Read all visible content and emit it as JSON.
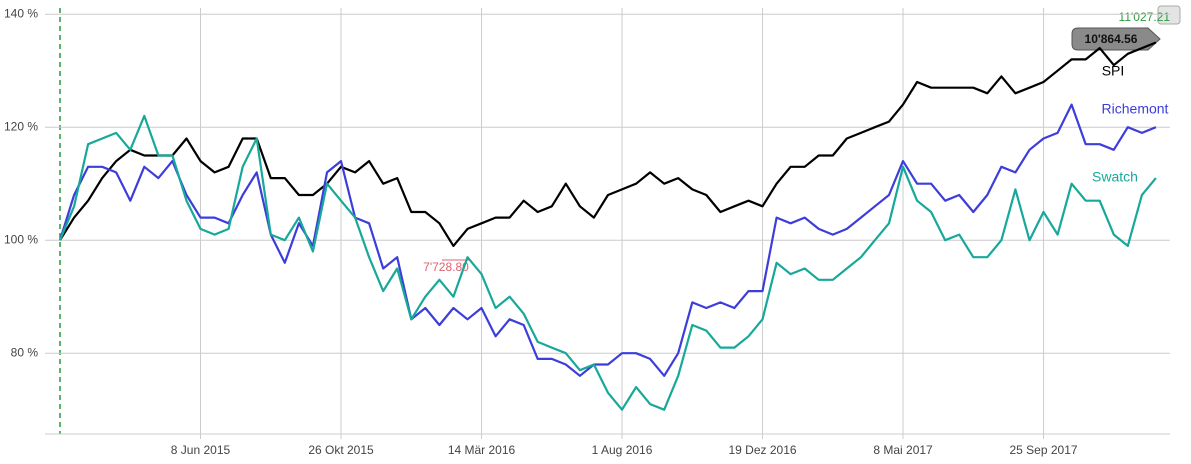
{
  "chart_data": {
    "type": "line",
    "xlim": [
      0,
      79
    ],
    "ylim": [
      65.7,
      141.1
    ],
    "yticks": [
      {
        "value": 80,
        "label": "80 %"
      },
      {
        "value": 100,
        "label": "100 %"
      },
      {
        "value": 120,
        "label": "120 %"
      },
      {
        "value": 140,
        "label": "140 %"
      }
    ],
    "xticks": [
      {
        "value": 10,
        "label": "8 Jun 2015"
      },
      {
        "value": 20,
        "label": "26 Okt 2015"
      },
      {
        "value": 30,
        "label": "14 Mär 2016"
      },
      {
        "value": 40,
        "label": "1 Aug 2016"
      },
      {
        "value": 50,
        "label": "19 Dez 2016"
      },
      {
        "value": 60,
        "label": "8 Mai 2017"
      },
      {
        "value": 70,
        "label": "25 Sep 2017"
      }
    ],
    "grid": true,
    "series": [
      {
        "name": "SPI",
        "color": "#000000",
        "values": [
          100,
          104,
          107,
          111,
          114,
          116,
          115,
          115,
          115,
          118,
          114,
          112,
          113,
          118,
          118,
          111,
          111,
          108,
          108,
          110,
          113,
          112,
          114,
          110,
          111,
          105,
          105,
          103,
          99,
          102,
          103,
          104,
          104,
          107,
          105,
          106,
          110,
          106,
          104,
          108,
          109,
          110,
          112,
          110,
          111,
          109,
          108,
          105,
          106,
          107,
          106,
          110,
          113,
          113,
          115,
          115,
          118,
          119,
          120,
          121,
          124,
          128,
          127,
          127,
          127,
          127,
          126,
          129,
          126,
          127,
          128,
          130,
          132,
          132,
          134,
          131,
          133,
          134,
          135
        ]
      },
      {
        "name": "Richemont",
        "color": "#3d3ddb",
        "values": [
          100,
          108,
          113,
          113,
          112,
          107,
          113,
          111,
          114,
          108,
          104,
          104,
          103,
          108,
          112,
          101,
          96,
          103,
          99,
          112,
          114,
          104,
          103,
          95,
          97,
          86,
          88,
          85,
          88,
          86,
          88,
          83,
          86,
          85,
          79,
          79,
          78,
          76,
          78,
          78,
          80,
          80,
          79,
          76,
          80,
          89,
          88,
          89,
          88,
          91,
          91,
          104,
          103,
          104,
          102,
          101,
          102,
          104,
          106,
          108,
          114,
          110,
          110,
          107,
          108,
          105,
          108,
          113,
          112,
          116,
          118,
          119,
          124,
          117,
          117,
          116,
          120,
          119,
          120
        ]
      },
      {
        "name": "Swatch",
        "color": "#17a89a",
        "values": [
          100,
          106,
          117,
          118,
          119,
          116,
          122,
          115,
          115,
          107,
          102,
          101,
          102,
          113,
          118,
          101,
          100,
          104,
          98,
          110,
          107,
          104,
          97,
          91,
          95,
          86,
          90,
          93,
          90,
          97,
          94,
          88,
          90,
          87,
          82,
          81,
          80,
          77,
          78,
          73,
          70,
          74,
          71,
          70,
          76,
          85,
          84,
          81,
          81,
          83,
          86,
          96,
          94,
          95,
          93,
          93,
          95,
          97,
          100,
          103,
          113,
          107,
          105,
          100,
          101,
          97,
          97,
          100,
          109,
          100,
          105,
          101,
          110,
          107,
          107,
          101,
          99,
          108,
          111
        ]
      }
    ],
    "annotations": {
      "max": "11'027.21",
      "current": "10'864.56",
      "min": "7'728.80"
    }
  }
}
